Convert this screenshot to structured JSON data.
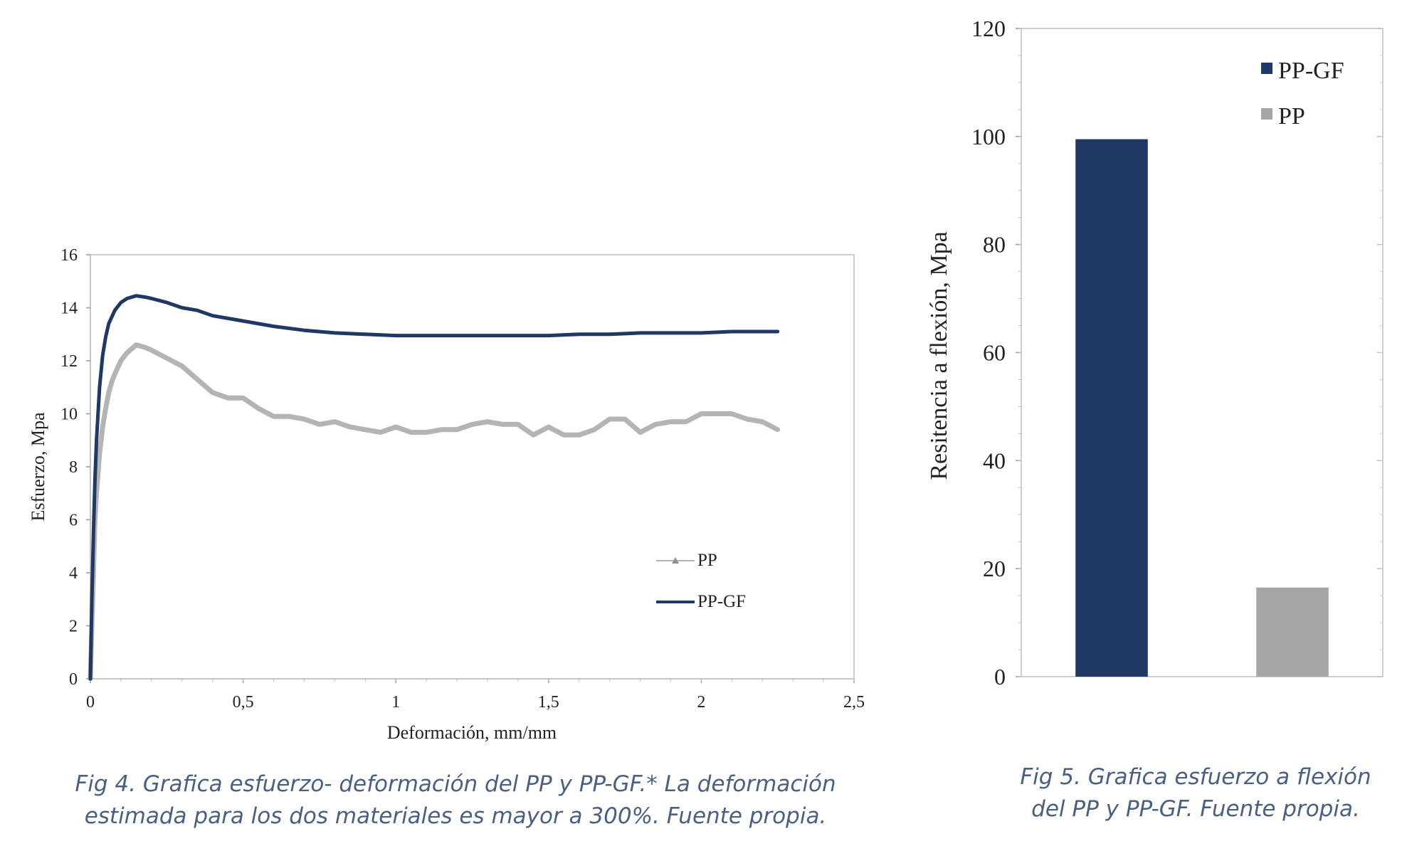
{
  "chart_data": [
    {
      "type": "line",
      "title": "",
      "xlabel": "Deformación, mm/mm",
      "ylabel": "Esfuerzo, Mpa",
      "xlim": [
        0,
        2.5
      ],
      "ylim": [
        0,
        16
      ],
      "x_ticks": [
        "0",
        "0,5",
        "1",
        "1,5",
        "2",
        "2,5"
      ],
      "y_ticks": [
        "0",
        "2",
        "4",
        "6",
        "8",
        "10",
        "12",
        "14",
        "16"
      ],
      "grid": false,
      "legend_position": "bottom-right",
      "series": [
        {
          "name": "PP",
          "color": "#b4b4b4",
          "x": [
            0,
            0.005,
            0.01,
            0.015,
            0.02,
            0.03,
            0.04,
            0.05,
            0.06,
            0.07,
            0.08,
            0.1,
            0.12,
            0.15,
            0.18,
            0.2,
            0.25,
            0.3,
            0.35,
            0.4,
            0.45,
            0.5,
            0.55,
            0.6,
            0.65,
            0.7,
            0.75,
            0.8,
            0.85,
            0.9,
            0.95,
            1.0,
            1.05,
            1.1,
            1.15,
            1.2,
            1.25,
            1.3,
            1.35,
            1.4,
            1.45,
            1.5,
            1.55,
            1.6,
            1.65,
            1.7,
            1.75,
            1.8,
            1.85,
            1.9,
            1.95,
            2.0,
            2.05,
            2.1,
            2.15,
            2.2,
            2.25
          ],
          "y": [
            0,
            2,
            4,
            6,
            7,
            8.5,
            9.5,
            10.2,
            10.8,
            11.2,
            11.5,
            12.0,
            12.3,
            12.6,
            12.5,
            12.4,
            12.1,
            11.8,
            11.3,
            10.8,
            10.6,
            10.6,
            10.2,
            9.9,
            9.9,
            9.8,
            9.6,
            9.7,
            9.5,
            9.4,
            9.3,
            9.5,
            9.3,
            9.3,
            9.4,
            9.4,
            9.6,
            9.7,
            9.6,
            9.6,
            9.2,
            9.5,
            9.2,
            9.2,
            9.4,
            9.8,
            9.8,
            9.3,
            9.6,
            9.7,
            9.7,
            10.0,
            10.0,
            10.0,
            9.8,
            9.7,
            9.4
          ]
        },
        {
          "name": "PP-GF",
          "color": "#1f3864",
          "x": [
            0,
            0.005,
            0.01,
            0.015,
            0.02,
            0.03,
            0.04,
            0.05,
            0.06,
            0.08,
            0.1,
            0.12,
            0.15,
            0.18,
            0.2,
            0.25,
            0.3,
            0.35,
            0.4,
            0.5,
            0.6,
            0.7,
            0.8,
            0.9,
            1.0,
            1.1,
            1.2,
            1.3,
            1.4,
            1.5,
            1.6,
            1.7,
            1.8,
            1.9,
            2.0,
            2.1,
            2.2,
            2.25
          ],
          "y": [
            0,
            3,
            5.5,
            7.5,
            9,
            11,
            12.2,
            12.9,
            13.4,
            13.9,
            14.2,
            14.35,
            14.45,
            14.4,
            14.35,
            14.2,
            14.0,
            13.9,
            13.7,
            13.5,
            13.3,
            13.15,
            13.05,
            13.0,
            12.95,
            12.95,
            12.95,
            12.95,
            12.95,
            12.95,
            13.0,
            13.0,
            13.05,
            13.05,
            13.05,
            13.1,
            13.1,
            13.1
          ]
        }
      ]
    },
    {
      "type": "bar",
      "title": "",
      "xlabel": "",
      "ylabel": "Resitencia a flexión, Mpa",
      "ylim": [
        0,
        120
      ],
      "y_ticks": [
        "0",
        "20",
        "40",
        "60",
        "80",
        "100",
        "120"
      ],
      "grid": false,
      "legend_position": "top-right",
      "series": [
        {
          "name": "PP-GF",
          "value": 99.5,
          "color": "#1f3864"
        },
        {
          "name": "PP",
          "value": 16.5,
          "color": "#a6a6a6"
        }
      ]
    }
  ],
  "captions": {
    "fig4_line1": "Fig 4. Grafica esfuerzo- deformación del PP y PP-GF.* La deformación",
    "fig4_line2": "estimada para los dos materiales es mayor a 300%. Fuente propia.",
    "fig5_line1": "Fig  5. Grafica esfuerzo a flexión",
    "fig5_line2": "del PP y PP-GF. Fuente propia."
  }
}
